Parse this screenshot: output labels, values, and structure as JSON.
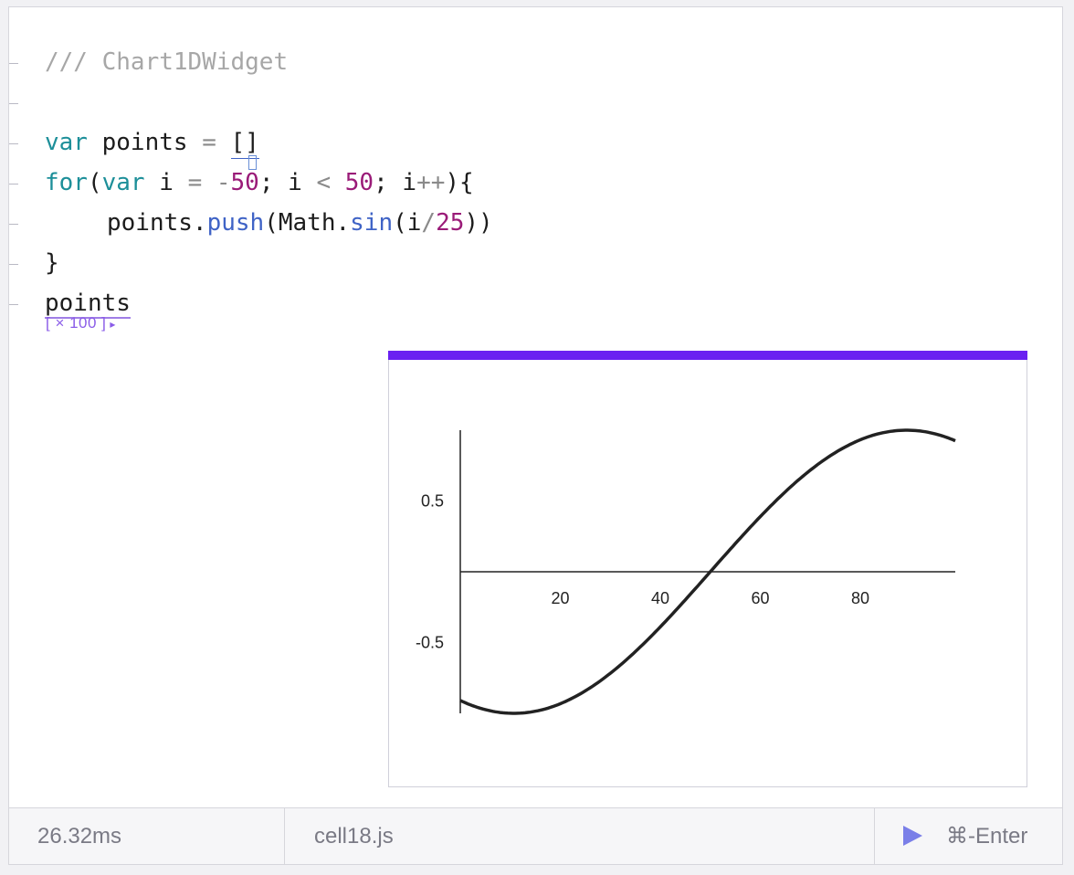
{
  "editor": {
    "lines": [
      {
        "comment": "/// Chart1DWidget"
      },
      {},
      {
        "kw_var": "var",
        "name": "points",
        "op_eq": "=",
        "value": "[]"
      },
      {
        "kw_for": "for",
        "p_open": "(",
        "kw_var": "var",
        "name": "i",
        "op_eq": "=",
        "op_minus": "-",
        "n1": "50",
        "semi1": ";",
        "name2": "i",
        "op_lt": "<",
        "n2": "50",
        "semi2": ";",
        "name3": "i",
        "op_inc": "++",
        "close": "){"
      },
      {
        "obj": "points.",
        "method": "push",
        "p_open": "(",
        "math": "Math.",
        "fn": "sin",
        "p_open2": "(",
        "arg": "i",
        "op_div": "/",
        "n": "25",
        "p_close": "))"
      },
      {
        "brace": "}"
      },
      {
        "name": "points"
      }
    ],
    "inspector": {
      "label": "[ × 100 ]",
      "arrow": "▸"
    }
  },
  "chart_data": {
    "type": "line",
    "xlim": [
      0,
      99
    ],
    "ylim": [
      -1,
      1
    ],
    "x_ticks": [
      "20",
      "40",
      "60",
      "80"
    ],
    "y_ticks": [
      "0.5",
      "-0.5"
    ],
    "series": [
      {
        "x_start": 0,
        "x_end": 99,
        "expr": "sin((x-50)/25)"
      }
    ],
    "accent_color": "#6a21f1"
  },
  "footer": {
    "time": "26.32ms",
    "filename": "cell18.js",
    "shortcut": "⌘-Enter"
  },
  "icons": {
    "run": "play-icon"
  }
}
